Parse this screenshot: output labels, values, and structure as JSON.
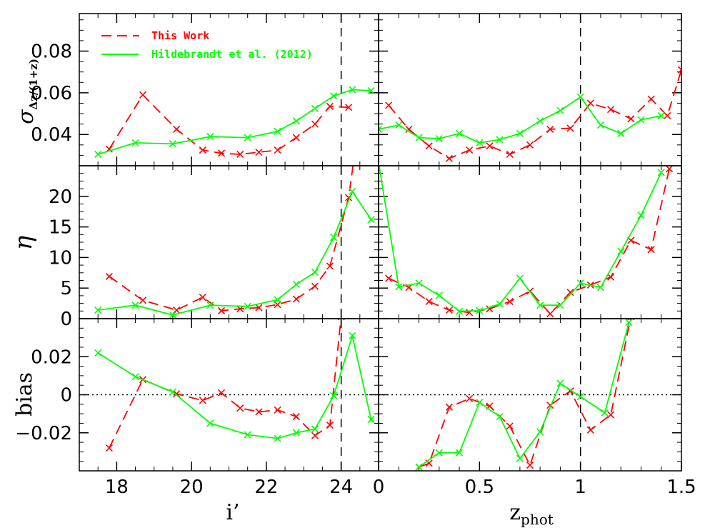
{
  "chart_data": {
    "type": "line",
    "legend": {
      "placement": "top-left",
      "entries": [
        {
          "label": "This Work",
          "color": "#ff0000",
          "style": "dashed"
        },
        {
          "label": "Hildebrandt et al. (2012)",
          "color": "#00ff00",
          "style": "solid"
        }
      ]
    },
    "x_axes": {
      "left": {
        "label_main": "i",
        "label_prime": "’",
        "xlim": [
          17.0,
          25.0
        ],
        "ticks": [
          18,
          20,
          22,
          24
        ],
        "tick_labels": [
          "18",
          "20",
          "22",
          "24"
        ],
        "cut_line": 24
      },
      "right": {
        "label_main": "z",
        "label_sub": "phot",
        "xlim": [
          0.0,
          1.5
        ],
        "ticks": [
          0,
          0.5,
          1,
          1.5
        ],
        "tick_labels": [
          "0",
          "0.5",
          "1",
          "1.5"
        ],
        "cut_line": 1.0
      }
    },
    "rows": [
      {
        "id": "sigma",
        "ylabel_main": "σ",
        "ylabel_sub": "Δz/(1+z)",
        "ylim": [
          0.025,
          0.098
        ],
        "ticks": [
          0.04,
          0.06,
          0.08
        ],
        "tick_labels": [
          "0.04",
          "0.06",
          "0.08"
        ],
        "zero_line": false,
        "left": {
          "this_work": [
            [
              17.8,
              0.033
            ],
            [
              18.7,
              0.059
            ],
            [
              19.6,
              0.0425
            ],
            [
              20.3,
              0.0325
            ],
            [
              20.8,
              0.031
            ],
            [
              21.3,
              0.0305
            ],
            [
              21.8,
              0.0315
            ],
            [
              22.3,
              0.0325
            ],
            [
              22.8,
              0.0385
            ],
            [
              23.3,
              0.045
            ],
            [
              23.7,
              0.0535
            ],
            [
              24.2,
              0.053
            ]
          ],
          "hildebrandt": [
            [
              17.5,
              0.0305
            ],
            [
              18.5,
              0.036
            ],
            [
              19.5,
              0.0355
            ],
            [
              20.5,
              0.039
            ],
            [
              21.5,
              0.0385
            ],
            [
              22.3,
              0.0415
            ],
            [
              22.8,
              0.0465
            ],
            [
              23.3,
              0.0525
            ],
            [
              23.8,
              0.0585
            ],
            [
              24.3,
              0.0615
            ],
            [
              24.8,
              0.061
            ]
          ]
        },
        "right": {
          "this_work": [
            [
              0.05,
              0.054
            ],
            [
              0.15,
              0.0425
            ],
            [
              0.25,
              0.0345
            ],
            [
              0.35,
              0.0285
            ],
            [
              0.45,
              0.0325
            ],
            [
              0.55,
              0.0345
            ],
            [
              0.65,
              0.0305
            ],
            [
              0.75,
              0.035
            ],
            [
              0.85,
              0.0425
            ],
            [
              0.95,
              0.043
            ],
            [
              1.05,
              0.055
            ],
            [
              1.15,
              0.052
            ],
            [
              1.25,
              0.0475
            ],
            [
              1.35,
              0.057
            ],
            [
              1.43,
              0.049
            ],
            [
              1.5,
              0.071
            ]
          ],
          "hildebrandt": [
            [
              0.0,
              0.0425
            ],
            [
              0.1,
              0.0445
            ],
            [
              0.2,
              0.0385
            ],
            [
              0.3,
              0.038
            ],
            [
              0.4,
              0.0405
            ],
            [
              0.5,
              0.036
            ],
            [
              0.6,
              0.0375
            ],
            [
              0.7,
              0.0405
            ],
            [
              0.8,
              0.0465
            ],
            [
              0.9,
              0.0515
            ],
            [
              1.0,
              0.058
            ],
            [
              1.1,
              0.0445
            ],
            [
              1.2,
              0.0405
            ],
            [
              1.3,
              0.047
            ],
            [
              1.4,
              0.049
            ]
          ]
        }
      },
      {
        "id": "eta",
        "ylabel_main": "η",
        "ylabel_sub": "",
        "ylim": [
          0,
          25
        ],
        "ticks": [
          0,
          5,
          10,
          15,
          20
        ],
        "tick_labels": [
          "0",
          "5",
          "10",
          "15",
          "20"
        ],
        "zero_line": false,
        "left": {
          "this_work": [
            [
              17.8,
              6.9
            ],
            [
              18.7,
              3.0
            ],
            [
              19.6,
              1.4
            ],
            [
              20.3,
              3.5
            ],
            [
              20.8,
              1.3
            ],
            [
              21.3,
              1.6
            ],
            [
              21.8,
              1.8
            ],
            [
              22.3,
              2.3
            ],
            [
              22.8,
              3.2
            ],
            [
              23.3,
              5.3
            ],
            [
              23.7,
              8.6
            ],
            [
              24.2,
              19.8
            ],
            [
              24.35,
              26.5
            ]
          ],
          "hildebrandt": [
            [
              17.5,
              1.4
            ],
            [
              18.5,
              2.2
            ],
            [
              19.5,
              0.6
            ],
            [
              20.5,
              2.2
            ],
            [
              21.5,
              2.0
            ],
            [
              22.3,
              3.1
            ],
            [
              22.8,
              5.6
            ],
            [
              23.3,
              7.6
            ],
            [
              23.8,
              13.3
            ],
            [
              24.3,
              20.8
            ],
            [
              24.8,
              16.2
            ]
          ]
        },
        "right": {
          "this_work": [
            [
              0.05,
              6.6
            ],
            [
              0.15,
              5.1
            ],
            [
              0.25,
              2.8
            ],
            [
              0.35,
              1.4
            ],
            [
              0.45,
              1.0
            ],
            [
              0.55,
              1.6
            ],
            [
              0.65,
              2.8
            ],
            [
              0.75,
              4.5
            ],
            [
              0.85,
              0.8
            ],
            [
              0.95,
              4.3
            ],
            [
              1.05,
              5.5
            ],
            [
              1.15,
              6.8
            ],
            [
              1.25,
              12.8
            ],
            [
              1.35,
              11.3
            ],
            [
              1.44,
              24.5
            ],
            [
              1.46,
              26.0
            ]
          ],
          "hildebrandt": [
            [
              0.0,
              25.5
            ],
            [
              0.1,
              5.2
            ],
            [
              0.2,
              5.8
            ],
            [
              0.3,
              3.8
            ],
            [
              0.4,
              1.2
            ],
            [
              0.5,
              1.3
            ],
            [
              0.6,
              2.4
            ],
            [
              0.7,
              6.6
            ],
            [
              0.8,
              2.2
            ],
            [
              0.9,
              2.2
            ],
            [
              1.0,
              5.8
            ],
            [
              1.1,
              5.1
            ],
            [
              1.2,
              11.0
            ],
            [
              1.3,
              16.9
            ],
            [
              1.4,
              23.9
            ]
          ]
        }
      },
      {
        "id": "bias",
        "ylabel_main": "bias",
        "ylabel_sub": "",
        "ylim": [
          -0.04,
          0.04
        ],
        "ticks": [
          -0.02,
          0,
          0.02
        ],
        "tick_labels": [
          "−0.02",
          "0",
          "0.02"
        ],
        "zero_line": true,
        "left": {
          "this_work": [
            [
              17.8,
              -0.028
            ],
            [
              18.7,
              0.008
            ],
            [
              19.6,
              0.0005
            ],
            [
              20.3,
              -0.003
            ],
            [
              20.8,
              0.001
            ],
            [
              21.3,
              -0.007
            ],
            [
              21.8,
              -0.009
            ],
            [
              22.3,
              -0.008
            ],
            [
              22.8,
              -0.0115
            ],
            [
              23.3,
              -0.0215
            ],
            [
              23.7,
              -0.016
            ],
            [
              24.0,
              0.041
            ]
          ],
          "hildebrandt": [
            [
              17.5,
              0.022
            ],
            [
              18.5,
              0.0095
            ],
            [
              19.5,
              0.0015
            ],
            [
              20.5,
              -0.015
            ],
            [
              21.5,
              -0.021
            ],
            [
              22.3,
              -0.023
            ],
            [
              22.8,
              -0.02
            ],
            [
              23.3,
              -0.018
            ],
            [
              23.8,
              -0.0005
            ],
            [
              24.3,
              0.031
            ],
            [
              24.8,
              -0.013
            ]
          ]
        },
        "right": {
          "this_work": [
            [
              0.2,
              -0.038
            ],
            [
              0.25,
              -0.036
            ],
            [
              0.35,
              -0.0065
            ],
            [
              0.45,
              -0.002
            ],
            [
              0.55,
              -0.006
            ],
            [
              0.65,
              -0.0165
            ],
            [
              0.75,
              -0.037
            ],
            [
              0.85,
              -0.0055
            ],
            [
              0.95,
              0.002
            ],
            [
              1.05,
              -0.0185
            ],
            [
              1.15,
              -0.0105
            ],
            [
              1.25,
              0.041
            ]
          ],
          "hildebrandt": [
            [
              0.2,
              -0.038
            ],
            [
              0.3,
              -0.0305
            ],
            [
              0.4,
              -0.0305
            ],
            [
              0.5,
              -0.004
            ],
            [
              0.6,
              -0.0115
            ],
            [
              0.7,
              -0.0335
            ],
            [
              0.8,
              -0.0195
            ],
            [
              0.9,
              0.006
            ],
            [
              1.0,
              -0.001
            ],
            [
              1.12,
              -0.0095
            ],
            [
              1.24,
              0.038
            ]
          ]
        }
      }
    ]
  }
}
